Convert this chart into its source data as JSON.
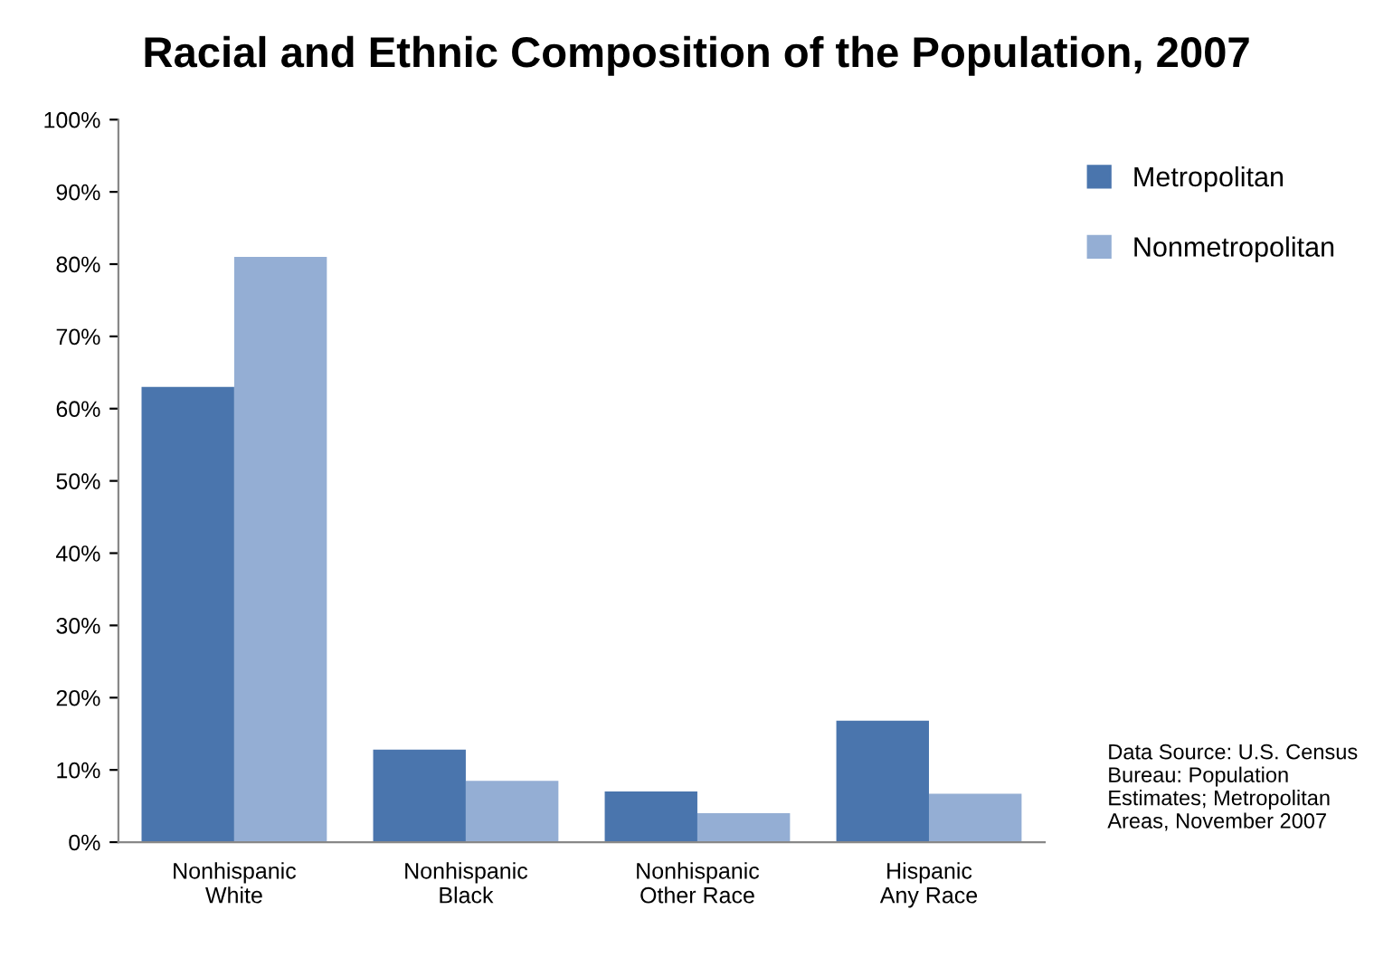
{
  "chart_data": {
    "type": "bar",
    "title": "Racial and Ethnic Composition of the Population, 2007",
    "categories": [
      "Nonhispanic\nWhite",
      "Nonhispanic\nBlack",
      "Nonhispanic\nOther Race",
      "Hispanic\nAny Race"
    ],
    "series": [
      {
        "name": "Metropolitan",
        "color": "#4a75ad",
        "values": [
          63,
          12.8,
          7,
          16.8
        ]
      },
      {
        "name": "Nonmetropolitan",
        "color": "#94aed4",
        "values": [
          81,
          8.5,
          4,
          6.7
        ]
      }
    ],
    "ylim": [
      0,
      100
    ],
    "yticks": [
      {
        "value": 0,
        "label": "0%"
      },
      {
        "value": 10,
        "label": "10%"
      },
      {
        "value": 20,
        "label": "20%"
      },
      {
        "value": 30,
        "label": "30%"
      },
      {
        "value": 40,
        "label": "40%"
      },
      {
        "value": 50,
        "label": "50%"
      },
      {
        "value": 60,
        "label": "60%"
      },
      {
        "value": 70,
        "label": "70%"
      },
      {
        "value": 80,
        "label": "80%"
      },
      {
        "value": 90,
        "label": "90%"
      },
      {
        "value": 100,
        "label": "100%"
      }
    ],
    "legend": "right",
    "annotations": [
      "Data Source: U.S. Census Bureau: Population Estimates; Metropolitan Areas, November 2007"
    ]
  }
}
